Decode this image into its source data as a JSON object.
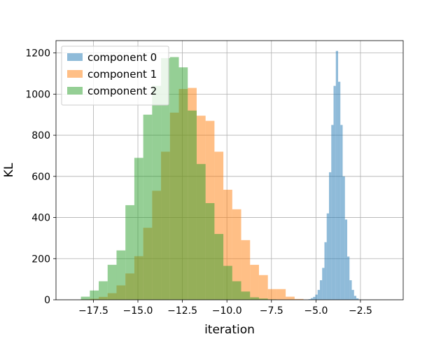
{
  "chart_data": {
    "type": "bar",
    "title": "",
    "xlabel": "iteration",
    "ylabel": "KL",
    "xlim": [
      -19.6,
      -0.1
    ],
    "ylim": [
      0,
      1260
    ],
    "x_ticks": [
      -17.5,
      -15.0,
      -12.5,
      -10.0,
      -7.5,
      -5.0,
      -2.5
    ],
    "x_tick_labels": [
      "−17.5",
      "−15.0",
      "−12.5",
      "−10.0",
      "−7.5",
      "−5.0",
      "−2.5"
    ],
    "y_ticks": [
      0,
      200,
      400,
      600,
      800,
      1000,
      1200
    ],
    "y_tick_labels": [
      "0",
      "200",
      "400",
      "600",
      "800",
      "1000",
      "1200"
    ],
    "grid": true,
    "legend_position": "top-left",
    "opacity": 0.5,
    "series": [
      {
        "name": "component 0",
        "color": "#1f77b4",
        "bin_start": -5.42,
        "bin_width": 0.128,
        "values": [
          3,
          8,
          14,
          25,
          48,
          95,
          155,
          280,
          420,
          620,
          850,
          1040,
          1210,
          1060,
          850,
          600,
          390,
          210,
          95,
          48,
          19,
          7
        ]
      },
      {
        "name": "component 1",
        "color": "#ff7f0e",
        "bin_start": -18.2,
        "bin_width": 0.5,
        "values": [
          2,
          5,
          14,
          32,
          70,
          128,
          212,
          350,
          530,
          720,
          910,
          1025,
          1030,
          895,
          870,
          720,
          535,
          440,
          290,
          170,
          120,
          52,
          52,
          15,
          4
        ]
      },
      {
        "name": "component 2",
        "color": "#2ca02c",
        "bin_start": -18.2,
        "bin_width": 0.5,
        "values": [
          15,
          45,
          90,
          170,
          240,
          460,
          690,
          900,
          1040,
          1175,
          1180,
          1130,
          920,
          660,
          470,
          320,
          165,
          90,
          40,
          12,
          6,
          2
        ]
      }
    ]
  }
}
